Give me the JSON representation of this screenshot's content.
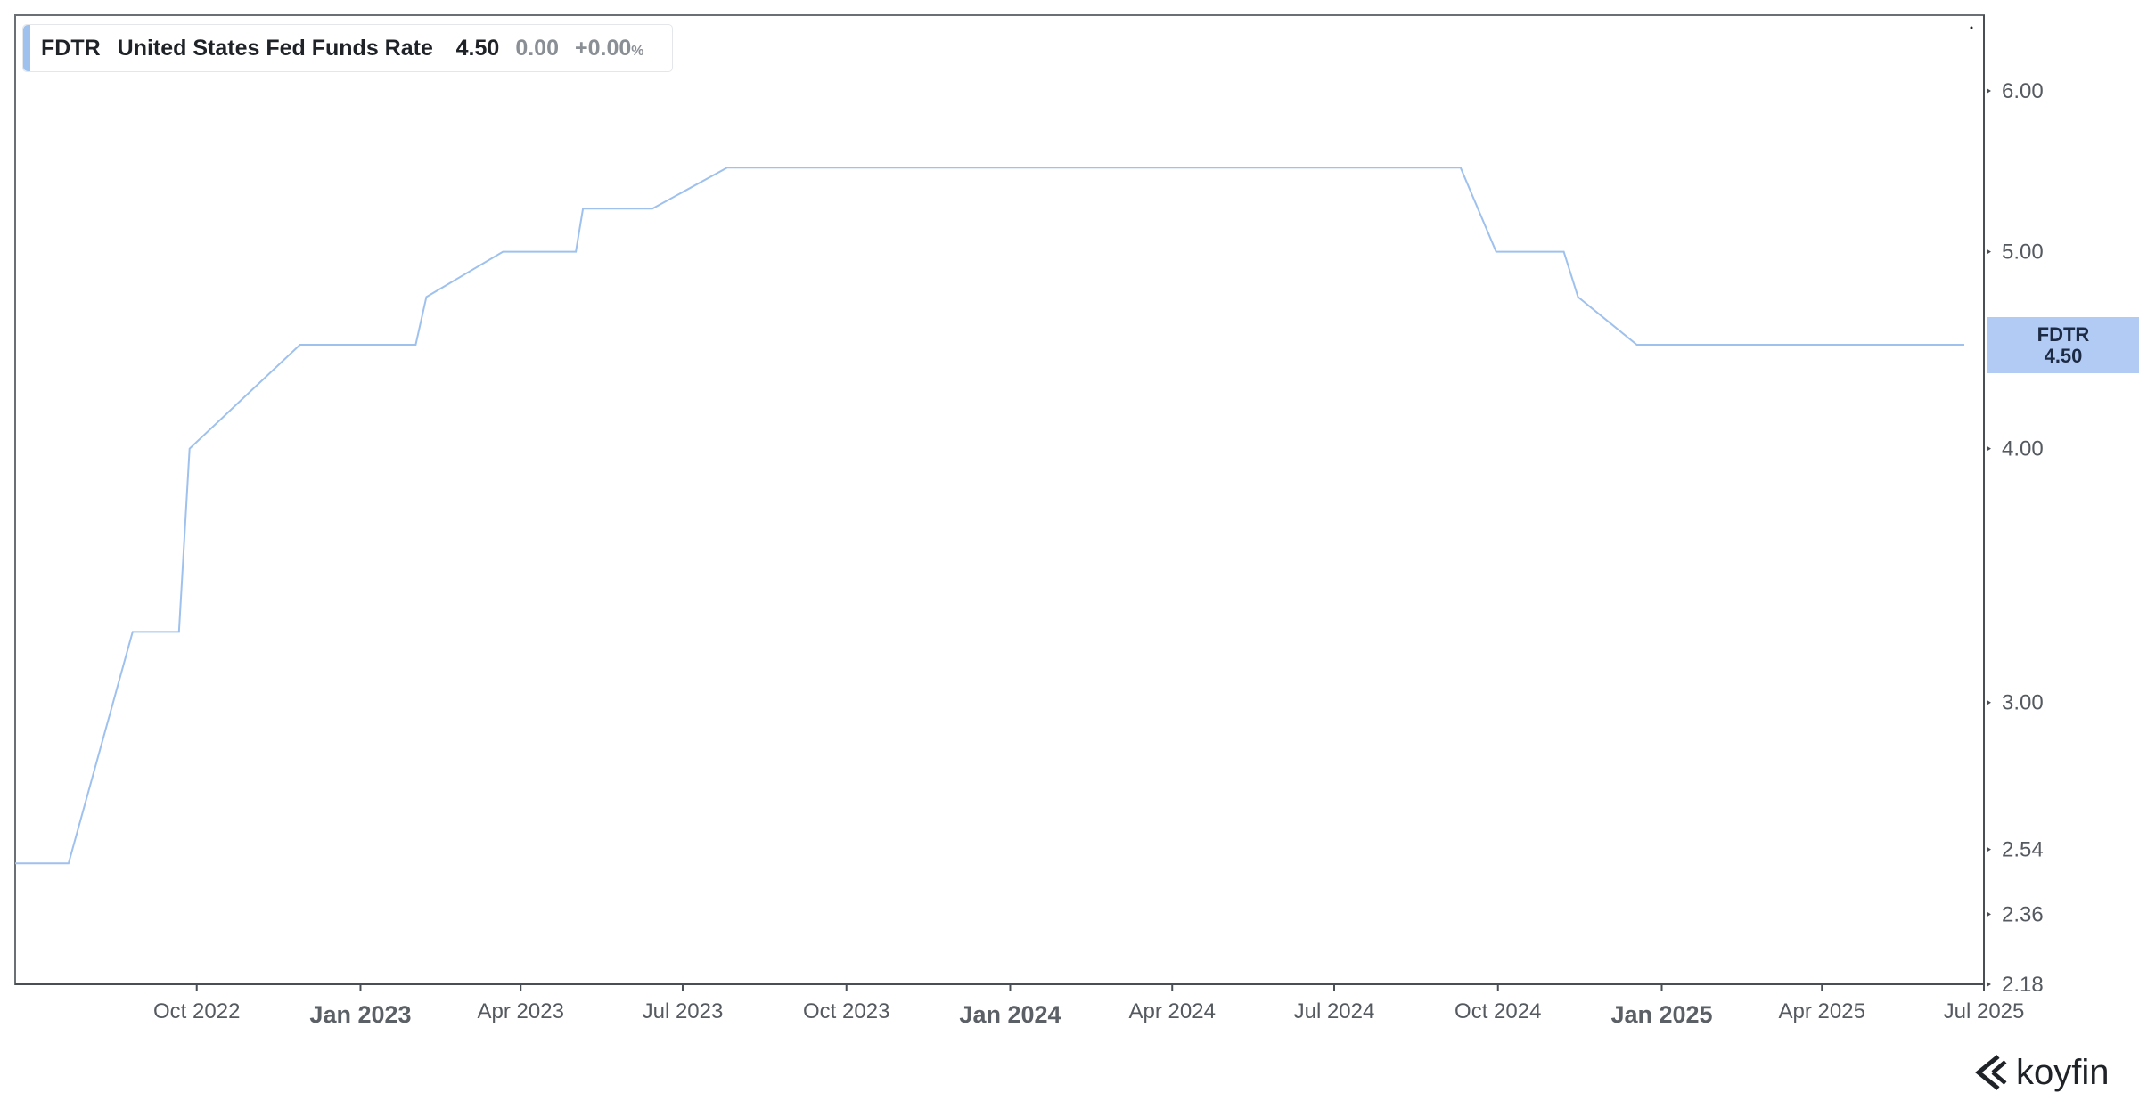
{
  "legend": {
    "ticker": "FDTR",
    "name": "United States Fed Funds Rate",
    "value": "4.50",
    "change": "0.00",
    "change_pct": "+0.00",
    "pct_sign": "%"
  },
  "last_price_tag": {
    "ticker": "FDTR",
    "value": "4.50"
  },
  "brand": {
    "name": "koyfin"
  },
  "colors": {
    "series_line": "#9fc1ee",
    "price_tag_bg": "#b2cbf5",
    "legend_accent": "#9fc1ee",
    "axis": "#4a4f55",
    "tick_text": "#555a60",
    "major_tick_text": "#5b6066"
  },
  "chart_data": {
    "type": "line",
    "y_scale": "log",
    "ylim": [
      2.18,
      6.0
    ],
    "xlim": [
      "2022-06-21",
      "2025-07-01"
    ],
    "grid": false,
    "legend_placement": "top-left",
    "y_ticks": [
      {
        "value": 6.0,
        "label": "6.00"
      },
      {
        "value": 5.0,
        "label": "5.00"
      },
      {
        "value": 4.0,
        "label": "4.00"
      },
      {
        "value": 3.0,
        "label": "3.00"
      },
      {
        "value": 2.54,
        "label": "2.54"
      },
      {
        "value": 2.36,
        "label": "2.36"
      },
      {
        "value": 2.18,
        "label": "2.18"
      }
    ],
    "x_ticks": [
      {
        "date": "2022-10-01",
        "label": "Oct 2022",
        "major": false
      },
      {
        "date": "2023-01-01",
        "label": "Jan 2023",
        "major": true
      },
      {
        "date": "2023-04-01",
        "label": "Apr 2023",
        "major": false
      },
      {
        "date": "2023-07-01",
        "label": "Jul 2023",
        "major": false
      },
      {
        "date": "2023-10-01",
        "label": "Oct 2023",
        "major": false
      },
      {
        "date": "2024-01-01",
        "label": "Jan 2024",
        "major": true
      },
      {
        "date": "2024-04-01",
        "label": "Apr 2024",
        "major": false
      },
      {
        "date": "2024-07-01",
        "label": "Jul 2024",
        "major": false
      },
      {
        "date": "2024-10-01",
        "label": "Oct 2024",
        "major": false
      },
      {
        "date": "2025-01-01",
        "label": "Jan 2025",
        "major": true
      },
      {
        "date": "2025-04-01",
        "label": "Apr 2025",
        "major": false
      },
      {
        "date": "2025-07-01",
        "label": "Jul 2025",
        "major": false
      }
    ],
    "series": [
      {
        "name": "FDTR",
        "points": [
          {
            "x": "2022-06-21",
            "y": 2.5
          },
          {
            "x": "2022-07-21",
            "y": 2.5
          },
          {
            "x": "2022-08-26",
            "y": 3.25
          },
          {
            "x": "2022-09-21",
            "y": 3.25
          },
          {
            "x": "2022-09-27",
            "y": 4.0
          },
          {
            "x": "2022-11-28",
            "y": 4.5
          },
          {
            "x": "2023-02-01",
            "y": 4.5
          },
          {
            "x": "2023-02-07",
            "y": 4.75
          },
          {
            "x": "2023-03-22",
            "y": 5.0
          },
          {
            "x": "2023-05-02",
            "y": 5.0
          },
          {
            "x": "2023-05-06",
            "y": 5.25
          },
          {
            "x": "2023-06-14",
            "y": 5.25
          },
          {
            "x": "2023-07-26",
            "y": 5.5
          },
          {
            "x": "2024-09-10",
            "y": 5.5
          },
          {
            "x": "2024-09-30",
            "y": 5.0
          },
          {
            "x": "2024-11-07",
            "y": 5.0
          },
          {
            "x": "2024-11-15",
            "y": 4.75
          },
          {
            "x": "2024-12-18",
            "y": 4.5
          },
          {
            "x": "2025-06-20",
            "y": 4.5
          }
        ]
      }
    ]
  }
}
